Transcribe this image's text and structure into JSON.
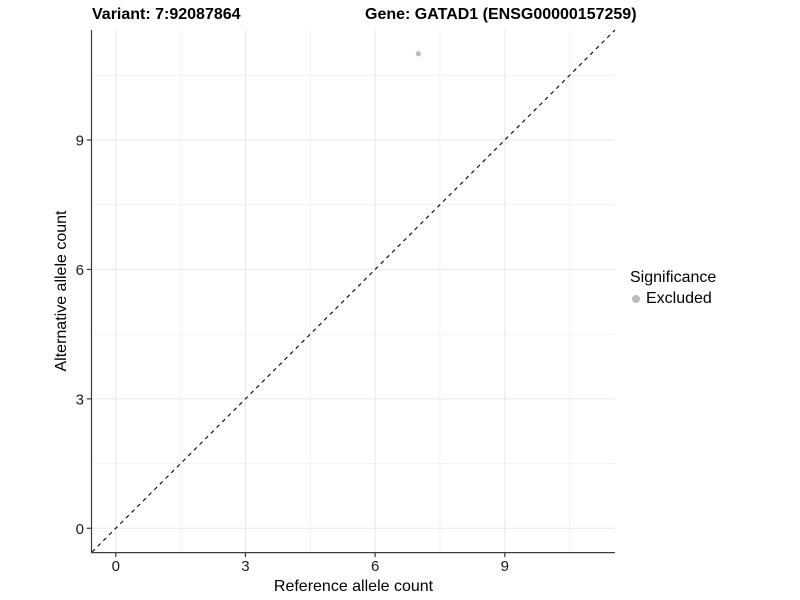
{
  "chart_data": {
    "type": "scatter",
    "title_left": "Variant: 7:92087864",
    "title_right": "Gene: GATAD1 (ENSG00000157259)",
    "xlabel": "Reference allele count",
    "ylabel": "Alternative allele count",
    "xlim": [
      -0.55,
      11.55
    ],
    "ylim": [
      -0.55,
      11.55
    ],
    "x_ticks": [
      0,
      3,
      6,
      9
    ],
    "y_ticks": [
      0,
      3,
      6,
      9
    ],
    "x_minor_ticks": [
      1.5,
      4.5,
      7.5,
      10.5
    ],
    "y_minor_ticks": [
      1.5,
      4.5,
      7.5,
      10.5
    ],
    "grid": "major+minor",
    "reference_line": {
      "kind": "identity y=x",
      "linetype": "dashed",
      "color": "#000000"
    },
    "series": [
      {
        "name": "Excluded",
        "marker": "circle",
        "color": "#bdbdbd",
        "point_radius": 2.6,
        "points": [
          {
            "x": 7,
            "y": 11
          }
        ]
      }
    ],
    "legend": {
      "title": "Significance",
      "position": "right",
      "entries": [
        {
          "label": "Excluded",
          "color": "#bdbdbd"
        }
      ]
    },
    "colors": {
      "background": "#ffffff",
      "grid_major": "#e8e8e8",
      "grid_minor": "#f2f2f2",
      "axis_line": "#3c3c3c",
      "tick_label": "#1a1a1a",
      "text": "#000000"
    }
  }
}
